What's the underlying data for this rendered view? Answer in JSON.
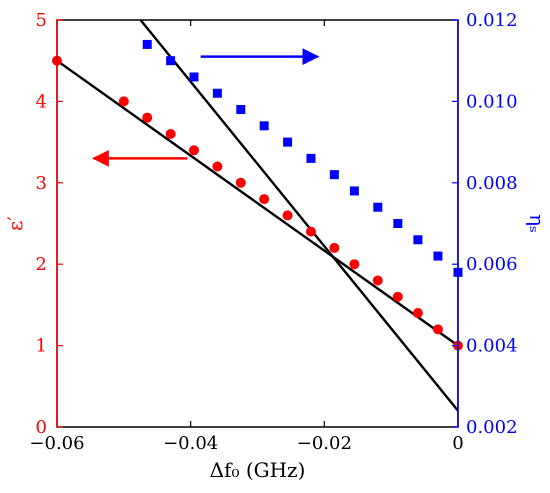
{
  "chart_data": {
    "type": "scatter",
    "xlabel": "Δf₀ (GHz)",
    "ylabel_left": "ε′",
    "ylabel_right": "ηₛ",
    "xlim": [
      -0.06,
      0
    ],
    "ylim_left": [
      0,
      5
    ],
    "ylim_right": [
      0.002,
      0.012
    ],
    "x_ticks": [
      -0.06,
      -0.04,
      -0.02,
      0
    ],
    "x_tick_labels": [
      "−0.06",
      "−0.04",
      "−0.02",
      "0"
    ],
    "y_left_ticks": [
      0,
      1,
      2,
      3,
      4,
      5
    ],
    "y_left_tick_labels": [
      "0",
      "1",
      "2",
      "3",
      "4",
      "5"
    ],
    "y_right_ticks": [
      0.002,
      0.004,
      0.006,
      0.008,
      0.01,
      0.012
    ],
    "y_right_tick_labels": [
      "0.002",
      "0.004",
      "0.006",
      "0.008",
      "0.010",
      "0.012"
    ],
    "grid": false,
    "legend": "none",
    "colors": {
      "left_axis": "#ff0000",
      "right_axis": "#0000ff",
      "line": "#000000",
      "frame": "#000000"
    },
    "series": [
      {
        "axis": "left",
        "marker": "circle",
        "color": "#ff0000",
        "points": [
          {
            "x": -0.06,
            "y": 4.5
          },
          {
            "x": -0.05,
            "y": 4.0
          },
          {
            "x": -0.0465,
            "y": 3.8
          },
          {
            "x": -0.043,
            "y": 3.6
          },
          {
            "x": -0.0395,
            "y": 3.4
          },
          {
            "x": -0.036,
            "y": 3.2
          },
          {
            "x": -0.0325,
            "y": 3.0
          },
          {
            "x": -0.029,
            "y": 2.8
          },
          {
            "x": -0.0255,
            "y": 2.6
          },
          {
            "x": -0.022,
            "y": 2.4
          },
          {
            "x": -0.0185,
            "y": 2.2
          },
          {
            "x": -0.0155,
            "y": 2.0
          },
          {
            "x": -0.012,
            "y": 1.8
          },
          {
            "x": -0.009,
            "y": 1.6
          },
          {
            "x": -0.006,
            "y": 1.4
          },
          {
            "x": -0.003,
            "y": 1.2
          },
          {
            "x": 0.0,
            "y": 1.0
          }
        ],
        "line": [
          {
            "x": -0.06,
            "y": 4.5
          },
          {
            "x": 0.0,
            "y": 1.0
          }
        ]
      },
      {
        "axis": "right",
        "marker": "square",
        "color": "#0000ff",
        "points": [
          {
            "x": -0.0465,
            "y": 0.0114
          },
          {
            "x": -0.043,
            "y": 0.011
          },
          {
            "x": -0.0395,
            "y": 0.0106
          },
          {
            "x": -0.036,
            "y": 0.0102
          },
          {
            "x": -0.0325,
            "y": 0.0098
          },
          {
            "x": -0.029,
            "y": 0.0094
          },
          {
            "x": -0.0255,
            "y": 0.009
          },
          {
            "x": -0.022,
            "y": 0.0086
          },
          {
            "x": -0.0185,
            "y": 0.0082
          },
          {
            "x": -0.0155,
            "y": 0.0078
          },
          {
            "x": -0.012,
            "y": 0.0074
          },
          {
            "x": -0.009,
            "y": 0.007
          },
          {
            "x": -0.006,
            "y": 0.0066
          },
          {
            "x": -0.003,
            "y": 0.0062
          },
          {
            "x": 0.0,
            "y": 0.0058
          }
        ],
        "line": [
          {
            "x": -0.0475,
            "y": 0.012
          },
          {
            "x": 0.0,
            "y": 0.0024
          }
        ]
      }
    ],
    "annotations": [
      {
        "type": "arrow",
        "direction": "left",
        "color": "#ff0000",
        "axis": "left",
        "from": {
          "x": -0.0405,
          "y": 3.3
        },
        "to": {
          "x": -0.0545,
          "y": 3.3
        }
      },
      {
        "type": "arrow",
        "direction": "right",
        "color": "#0000ff",
        "axis": "right",
        "from": {
          "x": -0.0385,
          "y": 0.0111
        },
        "to": {
          "x": -0.021,
          "y": 0.0111
        }
      }
    ]
  }
}
